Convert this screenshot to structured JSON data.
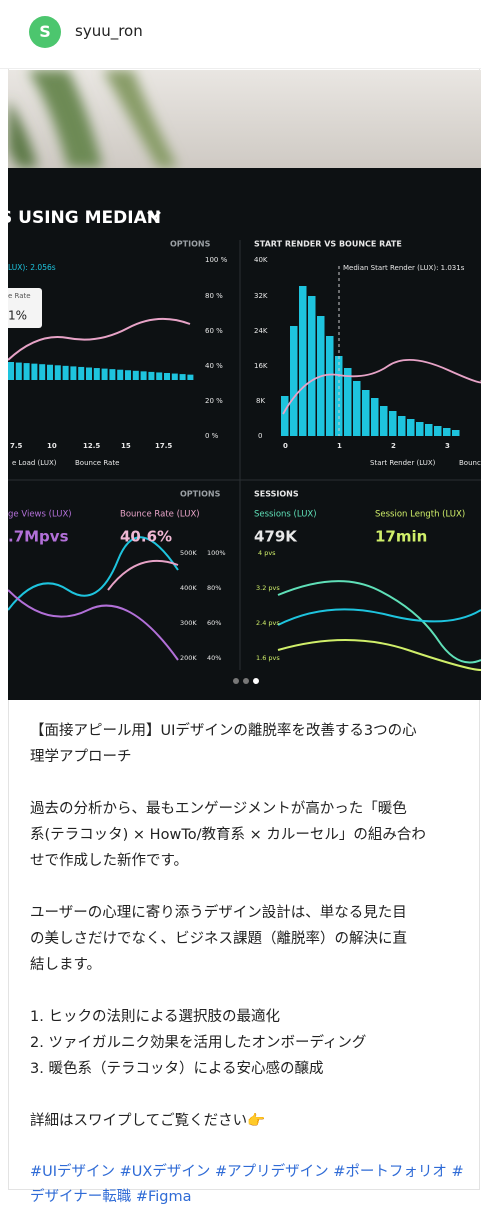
{
  "header": {
    "avatar_letter": "S",
    "username": "syuu_ron"
  },
  "image": {
    "labels": [
      "S USING MEDIAN",
      "OPTIONS",
      "START RENDER VS BOUNCE RATE",
      "LUX): 2.056s",
      "e Rate",
      "1%",
      "100 %",
      "80 %",
      "60 %",
      "40 %",
      "20 %",
      "0 %",
      "40K",
      "32K",
      "24K",
      "16K",
      "8K",
      "0",
      "Median Start Render (LUX): 1.031s",
      "7.5",
      "10",
      "12.5",
      "15",
      "17.5",
      "0",
      "1",
      "2",
      "3",
      "e Load (LUX)",
      "Bounce Rate",
      "Start Render (LUX)",
      "Bounce Rate",
      "OPTIONS",
      "SESSIONS",
      "ge Views (LUX)",
      "Bounce Rate (LUX)",
      "Sessions (LUX)",
      "Session Length (LUX)",
      ".7Mpvs",
      "40.6%",
      "479K",
      "17min",
      "500K",
      "100%",
      "400K",
      "80%",
      "300K",
      "60%",
      "200K",
      "40%",
      "4 pvs",
      "3.2 pvs",
      "2.4 pvs",
      "1.6 pvs"
    ]
  },
  "caption": {
    "paragraphs": [
      [
        "【面接アピール用】UIデザインの離脱率を改善する3つの心",
        "理学アプローチ"
      ],
      [
        "過去の分析から、最もエンゲージメントが高かった「暖色",
        "系(テラコッタ) × HowTo/教育系 × カルーセル」の組み合わ",
        "せで作成した新作です。"
      ],
      [
        "ユーザーの心理に寄り添うデザイン設計は、単なる見た目",
        "の美しさだけでなく、ビジネス課題（離脱率）の解決に直",
        "結します。"
      ],
      [
        "1. ヒックの法則による選択肢の最適化",
        "2. ツァイガルニク効果を活用したオンボーディング",
        "3. 暖色系（テラコッタ）による安心感の醸成"
      ],
      [
        "詳細はスワイプしてご覧ください👉"
      ]
    ],
    "hashtags": [
      "#UIデザイン",
      "#UXデザイン",
      "#アプリデザイン",
      "#ポートフォリオ",
      "#デザイナー転職",
      "#Figma"
    ]
  }
}
